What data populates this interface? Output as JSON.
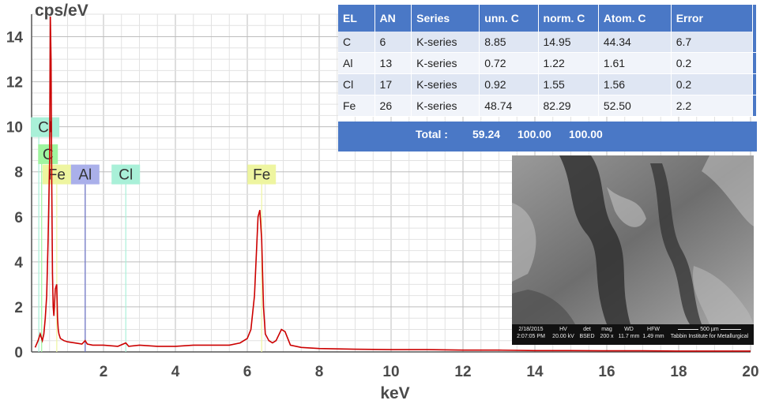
{
  "chart_data": {
    "type": "line",
    "title": "",
    "xlabel": "keV",
    "ylabel": "cps/eV",
    "xlim": [
      0,
      20
    ],
    "ylim": [
      0,
      15
    ],
    "xticks": [
      2,
      4,
      6,
      8,
      10,
      12,
      14,
      16,
      18,
      20
    ],
    "yticks": [
      0,
      2,
      4,
      6,
      8,
      10,
      12,
      14
    ],
    "x_tick_labels": [
      "2",
      "4",
      "6",
      "8",
      "10",
      "12",
      "14",
      "16",
      "18",
      "20"
    ],
    "y_tick_labels": [
      "0",
      "2",
      "4",
      "6",
      "8",
      "10",
      "12",
      "14"
    ],
    "grid": true,
    "series": [
      {
        "color": "#cc0000",
        "x": [
          0.1,
          0.18,
          0.24,
          0.28,
          0.3,
          0.34,
          0.38,
          0.42,
          0.46,
          0.5,
          0.52,
          0.54,
          0.56,
          0.58,
          0.6,
          0.62,
          0.66,
          0.7,
          0.72,
          0.74,
          0.76,
          0.8,
          0.9,
          1.0,
          1.2,
          1.4,
          1.49,
          1.55,
          1.7,
          2.0,
          2.4,
          2.62,
          2.7,
          3.0,
          3.5,
          4.0,
          4.5,
          5.0,
          5.5,
          5.8,
          6.0,
          6.1,
          6.2,
          6.3,
          6.35,
          6.4,
          6.45,
          6.5,
          6.6,
          6.7,
          6.8,
          6.95,
          7.05,
          7.2,
          7.5,
          8.0,
          9.0,
          10.0,
          11.0,
          12.0,
          13.0,
          14.0,
          15.0,
          16.0,
          17.0,
          18.0,
          19.0,
          20.0
        ],
        "y": [
          0.2,
          0.5,
          0.8,
          0.6,
          0.5,
          0.8,
          1.5,
          2.5,
          5.0,
          8.5,
          14.9,
          13.0,
          7.5,
          3.5,
          2.0,
          1.6,
          2.8,
          3.0,
          1.5,
          1.0,
          0.8,
          0.6,
          0.5,
          0.45,
          0.4,
          0.35,
          0.5,
          0.35,
          0.3,
          0.3,
          0.25,
          0.4,
          0.25,
          0.3,
          0.25,
          0.25,
          0.3,
          0.3,
          0.3,
          0.4,
          0.6,
          1.0,
          2.5,
          6.0,
          6.3,
          5.0,
          2.0,
          0.8,
          0.5,
          0.4,
          0.5,
          1.0,
          0.9,
          0.3,
          0.2,
          0.15,
          0.12,
          0.1,
          0.1,
          0.08,
          0.08,
          0.06,
          0.06,
          0.05,
          0.05,
          0.04,
          0.04,
          0.04
        ]
      }
    ],
    "peak_markers": [
      {
        "label": "Cl",
        "x": 0.2,
        "line_top": 10.0,
        "label_y": 10.0,
        "color": "#a9f0d8"
      },
      {
        "label": "C",
        "x": 0.28,
        "line_top": 8.8,
        "label_y": 8.8,
        "color": "#9ff59f"
      },
      {
        "label": "Fe",
        "x": 0.7,
        "line_top": 7.9,
        "label_y": 7.9,
        "color": "#eef5a0"
      },
      {
        "label": "Al",
        "x": 1.49,
        "line_top": 7.9,
        "label_y": 7.9,
        "color": "#aab0ea"
      },
      {
        "label": "Cl",
        "x": 2.62,
        "line_top": 7.9,
        "label_y": 7.9,
        "color": "#a9f0d8"
      },
      {
        "label": "Fe",
        "x": 6.4,
        "line_top": 7.9,
        "label_y": 7.9,
        "color": "#eef5a0"
      }
    ]
  },
  "table": {
    "headers": [
      "EL",
      "AN",
      "Series",
      "unn. C",
      "norm. C",
      "Atom. C",
      "Error"
    ],
    "rows": [
      [
        "C",
        "6",
        "K-series",
        "8.85",
        "14.95",
        "44.34",
        "6.7"
      ],
      [
        "Al",
        "13",
        "K-series",
        "0.72",
        "1.22",
        "1.61",
        "0.2"
      ],
      [
        "Cl",
        "17",
        "K-series",
        "0.92",
        "1.55",
        "1.56",
        "0.2"
      ],
      [
        "Fe",
        "26",
        "K-series",
        "48.74",
        "82.29",
        "52.50",
        "2.2"
      ]
    ],
    "total_label": "Total :",
    "total_unn": "59.24",
    "total_norm": "100.00",
    "total_atom": "100.00"
  },
  "sem": {
    "date": "2/18/2015",
    "time": "2:07:05 PM",
    "hv_label": "HV",
    "hv": "20.00 kV",
    "det_label": "det",
    "det": "BSED",
    "mag_label": "mag",
    "mag": "200 x",
    "wd_label": "WD",
    "wd": "11.7 mm",
    "hfw_label": "HFW",
    "hfw": "1.49 mm",
    "scale": "500 µm",
    "institute": "Tabbin Institute for Metallurgical"
  }
}
